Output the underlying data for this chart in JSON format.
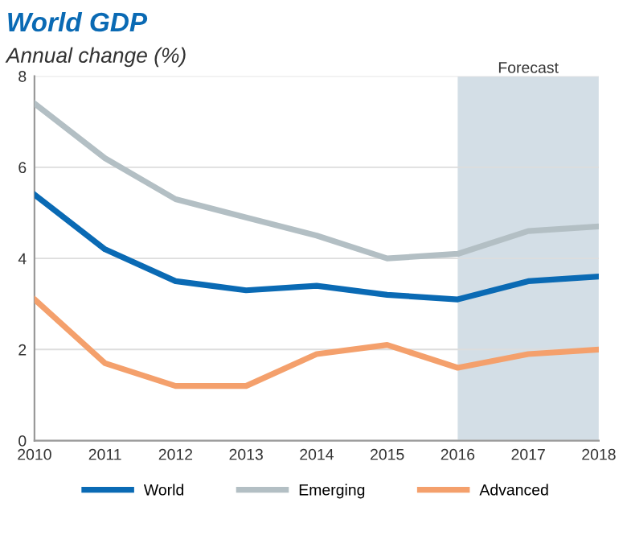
{
  "chart_data": {
    "type": "line",
    "title": "World GDP",
    "subtitle": "Annual change (%)",
    "x": [
      2010,
      2011,
      2012,
      2013,
      2014,
      2015,
      2016,
      2017,
      2018
    ],
    "series": [
      {
        "name": "World",
        "color": "#0a6ab4",
        "values": [
          5.4,
          4.2,
          3.5,
          3.3,
          3.4,
          3.2,
          3.1,
          3.5,
          3.6
        ]
      },
      {
        "name": "Emerging",
        "color": "#b3bfc4",
        "values": [
          7.4,
          6.2,
          5.3,
          4.9,
          4.5,
          4.0,
          4.1,
          4.6,
          4.7
        ]
      },
      {
        "name": "Advanced",
        "color": "#f4a06c",
        "values": [
          3.1,
          1.7,
          1.2,
          1.2,
          1.9,
          2.1,
          1.6,
          1.9,
          2.0
        ]
      }
    ],
    "xlim": [
      2010,
      2018
    ],
    "xticks": [
      2010,
      2011,
      2012,
      2013,
      2014,
      2015,
      2016,
      2017,
      2018
    ],
    "ylim": [
      0,
      8
    ],
    "yticks": [
      0,
      2,
      4,
      6,
      8
    ],
    "bands": [
      {
        "axis": "x",
        "from": 2016,
        "to": 2018,
        "label": "Forecast",
        "color": "#d3dee6"
      }
    ],
    "grid": "y",
    "legend": "bottom",
    "marker": "none",
    "line_style": "solid"
  }
}
